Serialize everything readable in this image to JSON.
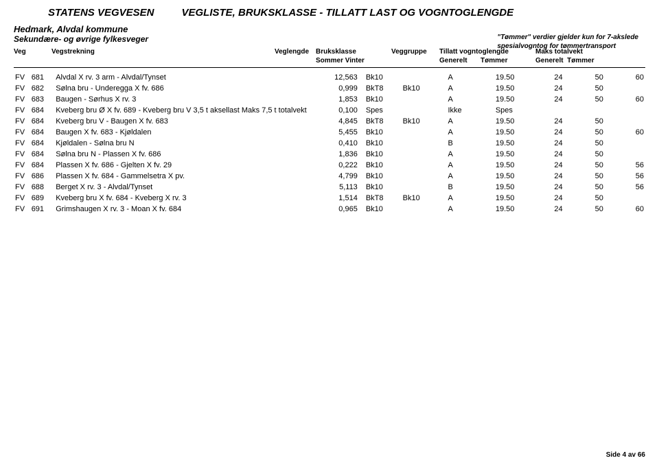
{
  "header": {
    "agency": "STATENS VEGVESEN",
    "title": "VEGLISTE, BRUKSKLASSE - TILLATT LAST OG VOGNTOGLENGDE",
    "region": "Hedmark, Alvdal kommune",
    "subtitle": "Sekundære- og øvrige fylkesveger",
    "note_line1": "\"Tømmer\" verdier gjelder kun for 7-akslede",
    "note_line2": "spesialvogntog for tømmertransport"
  },
  "columns": {
    "veg": "Veg",
    "vegstrekning": "Vegstrekning",
    "veglengde": "Veglengde",
    "bruksklasse": "Bruksklasse",
    "bruksklasse_sub": "Sommer   Vinter",
    "veggruppe": "Veggruppe",
    "tillatt": "Tillatt vogntoglengde",
    "tillatt_sub_g": "Generelt",
    "tillatt_sub_t": "Tømmer",
    "maks": "Maks totalvekt",
    "maks_sub_g": "Generelt",
    "maks_sub_t": "Tømmer"
  },
  "rows": [
    {
      "fv": "FV",
      "num": "681",
      "desc": "Alvdal X rv. 3 arm - Alvdal/Tynset",
      "len": "12,563",
      "s1": "Bk10",
      "s2": "",
      "grp": "A",
      "gen": "19.50",
      "tom": "24",
      "mg": "50",
      "mt": "60"
    },
    {
      "fv": "FV",
      "num": "682",
      "desc": "Sølna bru - Underegga X fv. 686",
      "len": "0,999",
      "s1": "BkT8",
      "s2": "Bk10",
      "grp": "A",
      "gen": "19.50",
      "tom": "24",
      "mg": "50",
      "mt": ""
    },
    {
      "fv": "FV",
      "num": "683",
      "desc": "Baugen - Sørhus X rv. 3",
      "len": "1,853",
      "s1": "Bk10",
      "s2": "",
      "grp": "A",
      "gen": "19.50",
      "tom": "24",
      "mg": "50",
      "mt": "60"
    },
    {
      "fv": "FV",
      "num": "684",
      "desc": "Kveberg bru Ø X fv. 689 - Kveberg bru V  3,5 t aksellast Maks 7,5 t totalvekt",
      "len": "0,100",
      "s1": "Spes",
      "s2": "",
      "grp": "Ikke",
      "gen": "Spes",
      "tom": "",
      "mg": "",
      "mt": ""
    },
    {
      "fv": "FV",
      "num": "684",
      "desc": "Kveberg bru V - Baugen X fv. 683",
      "len": "4,845",
      "s1": "BkT8",
      "s2": "Bk10",
      "grp": "A",
      "gen": "19.50",
      "tom": "24",
      "mg": "50",
      "mt": ""
    },
    {
      "fv": "FV",
      "num": "684",
      "desc": "Baugen X fv. 683 - Kjøldalen",
      "len": "5,455",
      "s1": "Bk10",
      "s2": "",
      "grp": "A",
      "gen": "19.50",
      "tom": "24",
      "mg": "50",
      "mt": "60"
    },
    {
      "fv": "FV",
      "num": "684",
      "desc": "Kjøldalen - Sølna bru N",
      "len": "0,410",
      "s1": "Bk10",
      "s2": "",
      "grp": "B",
      "gen": "19.50",
      "tom": "24",
      "mg": "50",
      "mt": ""
    },
    {
      "fv": "FV",
      "num": "684",
      "desc": "Sølna bru N - Plassen X fv. 686",
      "len": "1,836",
      "s1": "Bk10",
      "s2": "",
      "grp": "A",
      "gen": "19.50",
      "tom": "24",
      "mg": "50",
      "mt": ""
    },
    {
      "fv": "FV",
      "num": "684",
      "desc": "Plassen X fv. 686 - Gjelten X fv. 29",
      "len": "0,222",
      "s1": "Bk10",
      "s2": "",
      "grp": "A",
      "gen": "19.50",
      "tom": "24",
      "mg": "50",
      "mt": "56"
    },
    {
      "fv": "FV",
      "num": "686",
      "desc": "Plassen X fv. 684 - Gammelsetra X pv.",
      "len": "4,799",
      "s1": "Bk10",
      "s2": "",
      "grp": "A",
      "gen": "19.50",
      "tom": "24",
      "mg": "50",
      "mt": "56"
    },
    {
      "fv": "FV",
      "num": "688",
      "desc": "Berget X rv. 3 - Alvdal/Tynset",
      "len": "5,113",
      "s1": "Bk10",
      "s2": "",
      "grp": "B",
      "gen": "19.50",
      "tom": "24",
      "mg": "50",
      "mt": "56"
    },
    {
      "fv": "FV",
      "num": "689",
      "desc": "Kveberg bru X fv. 684 - Kveberg X rv. 3",
      "len": "1,514",
      "s1": "BkT8",
      "s2": "Bk10",
      "grp": "A",
      "gen": "19.50",
      "tom": "24",
      "mg": "50",
      "mt": ""
    },
    {
      "fv": "FV",
      "num": "691",
      "desc": "Grimshaugen X rv. 3 - Moan X fv. 684",
      "len": "0,965",
      "s1": "Bk10",
      "s2": "",
      "grp": "A",
      "gen": "19.50",
      "tom": "24",
      "mg": "50",
      "mt": "60"
    }
  ],
  "footer": "Side 4 av 66"
}
